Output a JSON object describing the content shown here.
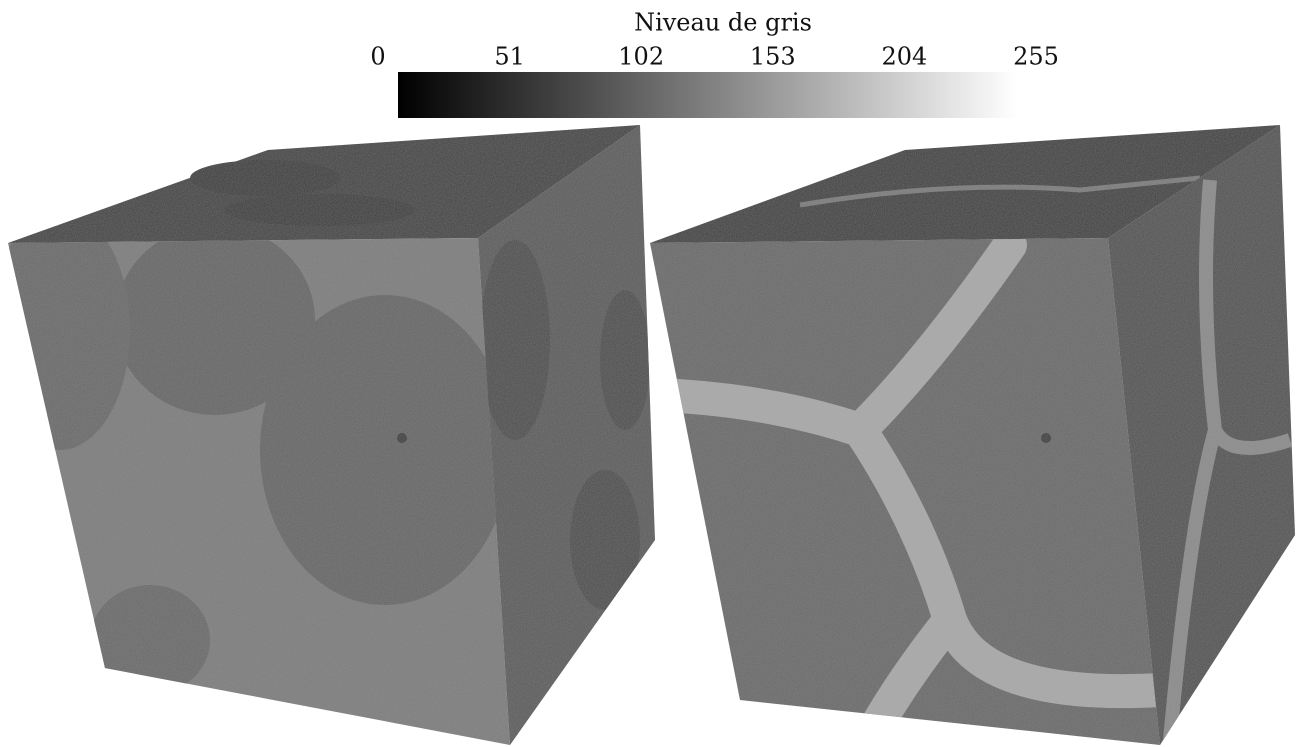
{
  "chart_data": {
    "type": "colorbar",
    "title": "Niveau de gris",
    "xlim": [
      0,
      255
    ],
    "xticks": [
      0,
      51,
      102,
      153,
      204,
      255
    ]
  }
}
